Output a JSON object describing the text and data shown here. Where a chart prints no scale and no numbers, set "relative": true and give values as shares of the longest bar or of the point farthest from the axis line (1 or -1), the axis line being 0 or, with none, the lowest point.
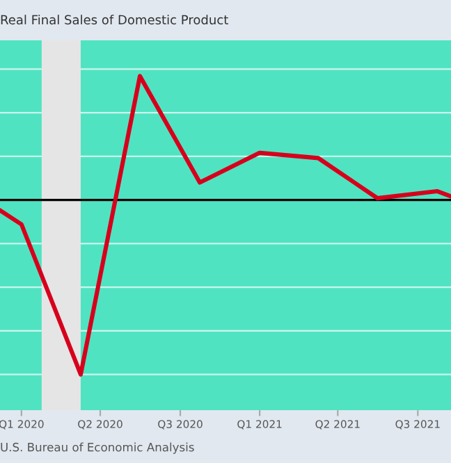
{
  "chart_data": {
    "type": "line",
    "title": "Real Final Sales of Domestic Product",
    "relative": true,
    "x": [
      "2019-11-29",
      "2020-01-01",
      "2020-04-01",
      "2020-07-01",
      "2020-10-01",
      "2021-01-01",
      "2021-04-01",
      "2021-07-01",
      "2021-10-01",
      "2021-10-22"
    ],
    "series": [
      {
        "color": "#d6001c",
        "values": [
          -0.06,
          -0.14,
          -1,
          0.71,
          0.1,
          0.27,
          0.24,
          0.01,
          0.05,
          0.02
        ]
      }
    ],
    "xlim": [
      "2019-11-29",
      "2021-10-22"
    ],
    "xticks": [
      {
        "value": "2020-01-01",
        "label": "Q1 2020"
      },
      {
        "value": "2020-05-01",
        "label": "Q2 2020"
      },
      {
        "value": "2020-09-01",
        "label": "Q3 2020"
      },
      {
        "value": "2021-01-01",
        "label": "Q1 2021"
      },
      {
        "value": "2021-05-01",
        "label": "Q2 2021"
      },
      {
        "value": "2021-09-01",
        "label": "Q3 2021"
      }
    ],
    "bands": [
      {
        "axis": "x",
        "from": "2020-02-01",
        "to": "2020-04-01",
        "color": "#e5e5e5"
      }
    ],
    "ref_lines": [
      {
        "axis": "y",
        "value": 0,
        "color": "#000000"
      }
    ],
    "grid": "y",
    "line_style": "solid",
    "annotations": [
      "U.S. Bureau of Economic Analysis"
    ]
  }
}
